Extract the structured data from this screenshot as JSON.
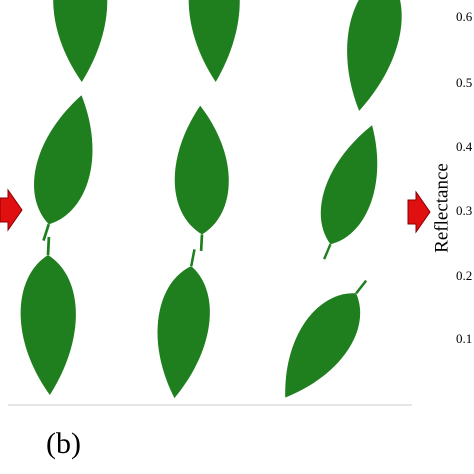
{
  "figure": {
    "panel_label": "(b)",
    "axis_label": "Reflectance",
    "ticks": [
      "0.6",
      "0.5",
      "0.4",
      "0.3",
      "0.2",
      "0.1"
    ]
  }
}
